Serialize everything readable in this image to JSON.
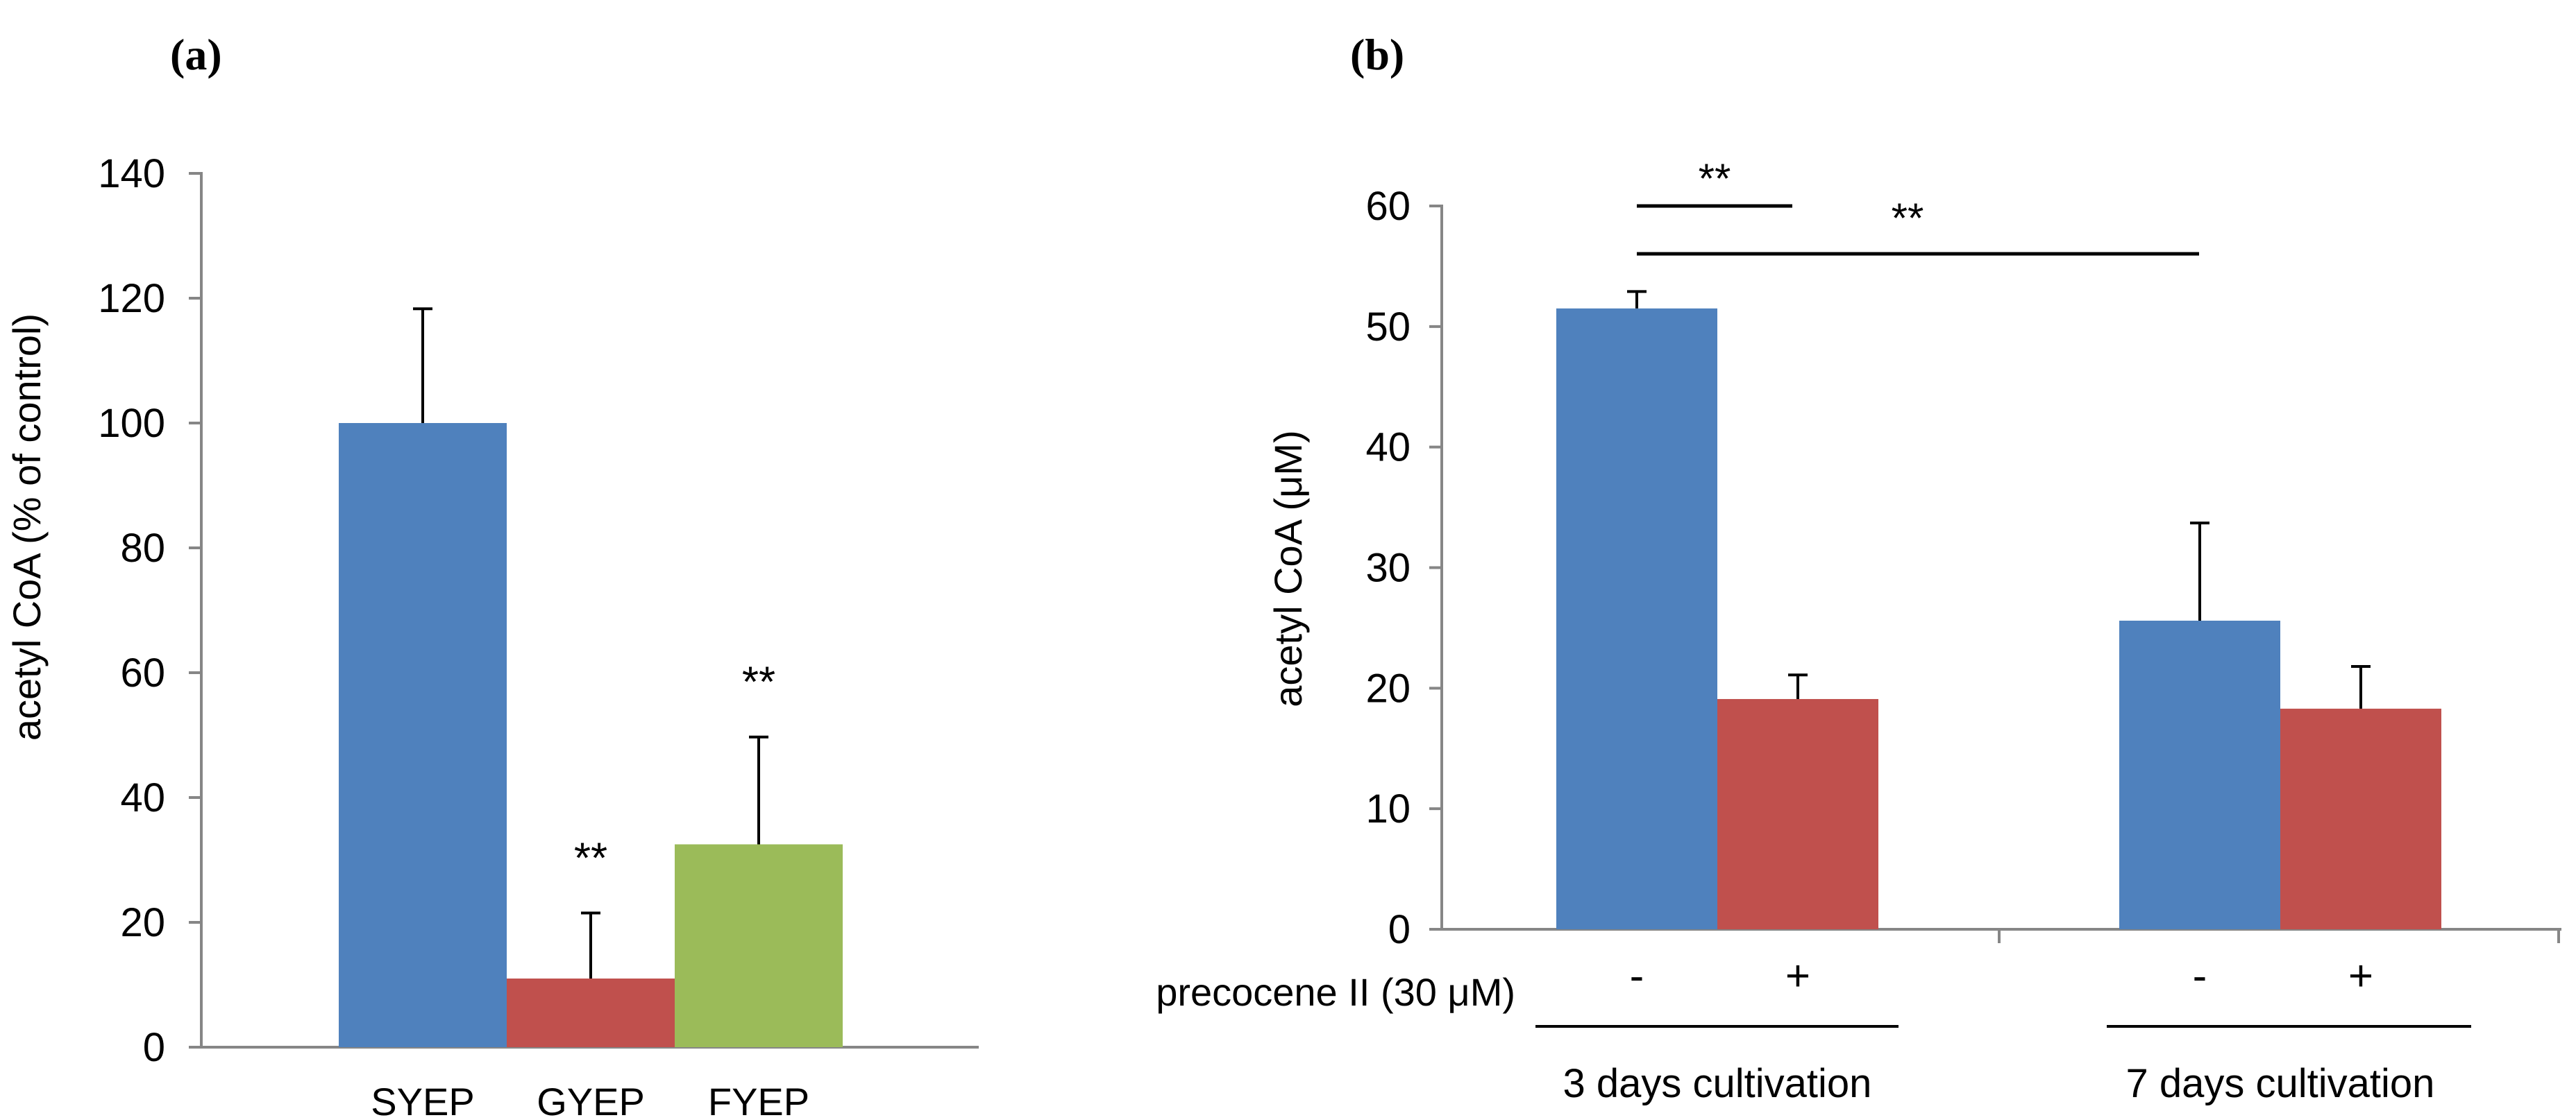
{
  "chart_data": [
    {
      "panel": "(a)",
      "type": "bar",
      "ylabel": "acetyl CoA (% of control)",
      "ylim": [
        0,
        140
      ],
      "yticks": [
        0,
        20,
        40,
        60,
        80,
        100,
        120,
        140
      ],
      "categories": [
        "SYEP",
        "GYEP",
        "FYEP"
      ],
      "values": [
        100,
        11,
        32.5
      ],
      "errors": [
        18.3,
        10.5,
        17.2
      ],
      "colors": [
        "#4f81bd",
        "#c0504d",
        "#9bbb59"
      ],
      "annotations": [
        "",
        "**",
        "**"
      ]
    },
    {
      "panel": "(b)",
      "type": "bar",
      "ylabel": "acetyl CoA (μM)",
      "ylim": [
        0,
        60
      ],
      "yticks": [
        0,
        10,
        20,
        30,
        40,
        50,
        60
      ],
      "groups": [
        "3 days cultivation",
        "7 days cultivation"
      ],
      "condition_label": "precocene II (30 μM)",
      "condition_values": [
        "-",
        "+"
      ],
      "series": [
        {
          "name": "-",
          "color": "#4f81bd",
          "values": [
            51.5,
            25.6
          ],
          "errors": [
            1.4,
            8.1
          ]
        },
        {
          "name": "+",
          "color": "#c0504d",
          "values": [
            19.1,
            18.3
          ],
          "errors": [
            2.0,
            3.5
          ]
        }
      ],
      "significance": [
        {
          "label": "**",
          "between": "3 days: - vs +"
        },
        {
          "label": "**",
          "between": "3 days - vs 7 days -"
        }
      ]
    }
  ]
}
